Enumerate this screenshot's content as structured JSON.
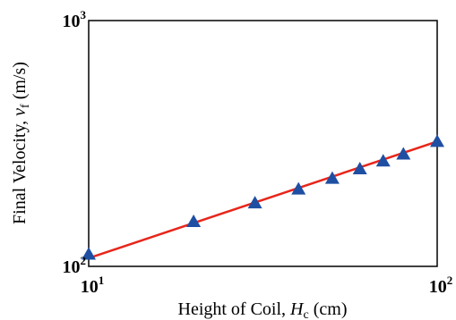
{
  "chart_data": {
    "type": "scatter",
    "x_scale": "log",
    "y_scale": "log",
    "xlim": [
      10,
      100
    ],
    "ylim": [
      100,
      1000
    ],
    "grid": false,
    "x_ticks": [
      {
        "value": 10,
        "base": "10",
        "exp": "1"
      },
      {
        "value": 100,
        "base": "10",
        "exp": "2"
      }
    ],
    "y_ticks": [
      {
        "value": 100,
        "base": "10",
        "exp": "2"
      },
      {
        "value": 1000,
        "base": "10",
        "exp": "3"
      }
    ],
    "xlabel": {
      "text": "Height of Coil, ",
      "symbol": "H",
      "subscript": "c",
      "unit": " (cm)"
    },
    "ylabel": {
      "text": "Final Velocity, ",
      "symbol": "v",
      "subscript": "f",
      "unit": " (m/s)"
    },
    "points": {
      "x": [
        10,
        20,
        30,
        40,
        50,
        60,
        70,
        80,
        100
      ],
      "y": [
        112,
        152,
        181,
        206,
        228,
        249,
        268,
        286,
        322
      ],
      "marker": "triangle",
      "color": "#1f4fa3"
    },
    "fit_line": {
      "x": [
        10,
        100
      ],
      "y": [
        108,
        322
      ],
      "color": "#e8251a"
    }
  }
}
